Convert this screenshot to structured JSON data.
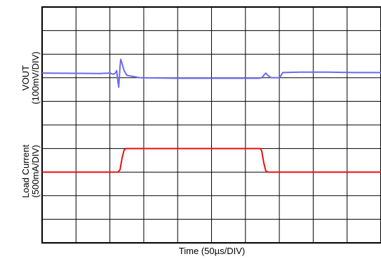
{
  "chart_data": {
    "type": "line",
    "xlabel": "Time (50µs/DIV)",
    "ylabel_top": [
      "VOUT",
      "(100mV/DIV)"
    ],
    "ylabel_bottom": [
      "Load Current",
      "(500mA/DIV)"
    ],
    "x_divisions": 10,
    "y_divisions": 10,
    "xlim": [
      0,
      500
    ],
    "ylim": [
      0,
      10
    ],
    "grid": true,
    "series": [
      {
        "color": "#6a6af0",
        "points": [
          [
            0,
            7.2
          ],
          [
            85,
            7.18
          ],
          [
            100,
            7.2
          ],
          [
            105,
            7.15
          ],
          [
            108,
            7.2
          ],
          [
            110,
            7.3
          ],
          [
            112,
            6.8
          ],
          [
            113,
            6.6
          ],
          [
            115,
            7.5
          ],
          [
            116,
            7.78
          ],
          [
            118,
            7.6
          ],
          [
            121,
            7.3
          ],
          [
            125,
            7.1
          ],
          [
            135,
            7.05
          ],
          [
            145,
            7.0
          ],
          [
            200,
            6.98
          ],
          [
            250,
            6.98
          ],
          [
            300,
            6.98
          ],
          [
            320,
            6.98
          ],
          [
            324,
            7.0
          ],
          [
            327,
            7.1
          ],
          [
            330,
            7.2
          ],
          [
            333,
            7.1
          ],
          [
            338,
            7.0
          ],
          [
            350,
            7.0
          ],
          [
            353,
            7.12
          ],
          [
            355,
            7.22
          ],
          [
            380,
            7.24
          ],
          [
            420,
            7.24
          ],
          [
            460,
            7.22
          ],
          [
            500,
            7.22
          ]
        ]
      },
      {
        "color": "#e81010",
        "points": [
          [
            0,
            3.0
          ],
          [
            112,
            3.0
          ],
          [
            115,
            3.1
          ],
          [
            118,
            3.6
          ],
          [
            121,
            3.94
          ],
          [
            124,
            4.0
          ],
          [
            200,
            4.0
          ],
          [
            250,
            4.0
          ],
          [
            300,
            4.0
          ],
          [
            322,
            4.0
          ],
          [
            324,
            3.9
          ],
          [
            327,
            3.4
          ],
          [
            330,
            3.05
          ],
          [
            333,
            3.0
          ],
          [
            400,
            3.0
          ],
          [
            500,
            3.0
          ]
        ]
      }
    ]
  }
}
